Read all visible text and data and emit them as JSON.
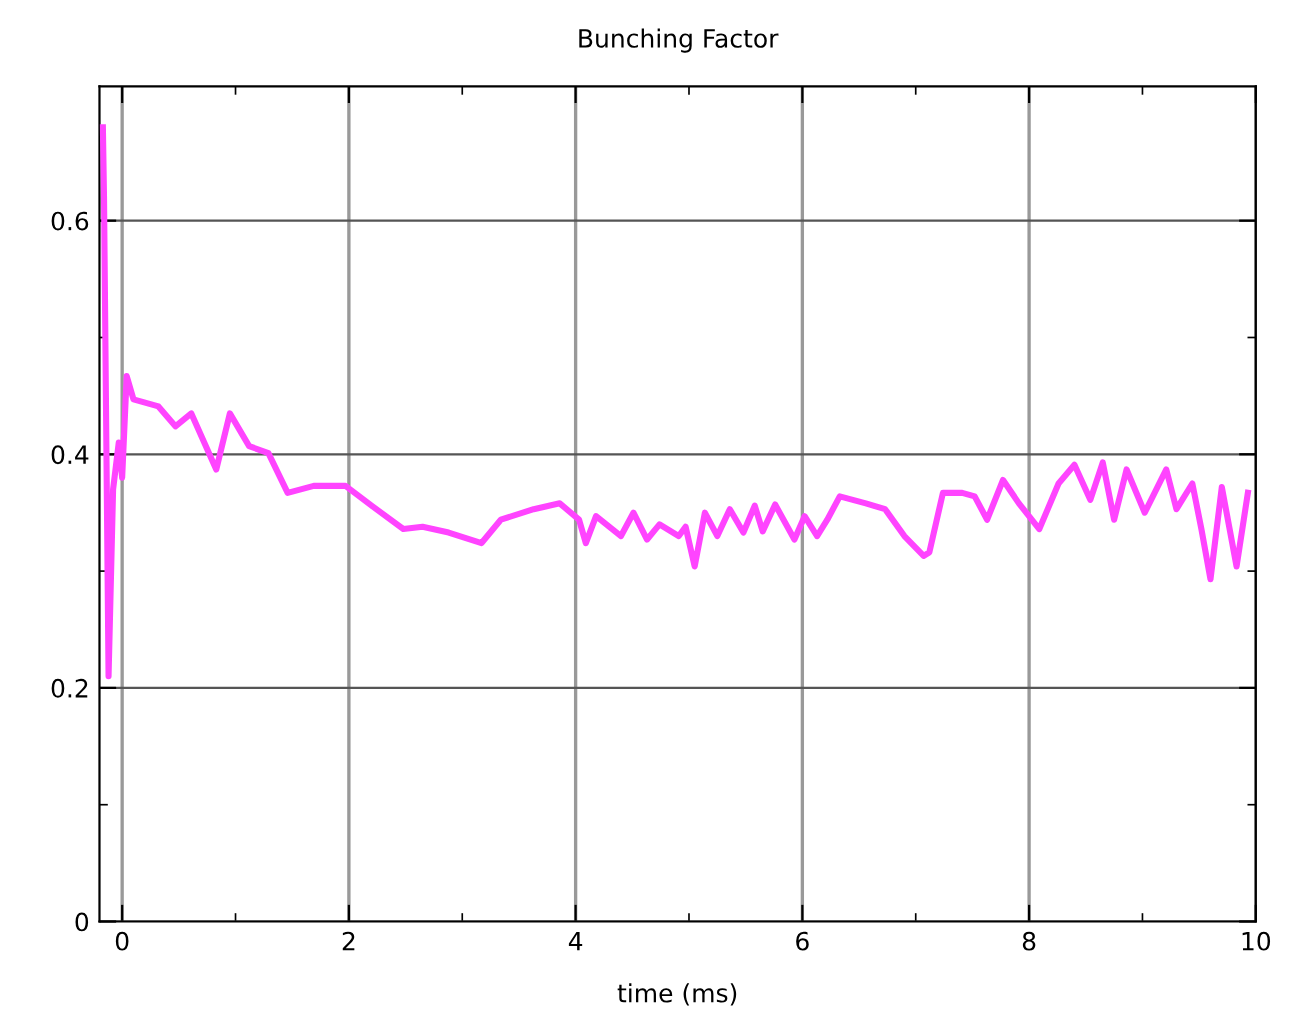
{
  "chart_data": {
    "type": "line",
    "title": "Bunching Factor",
    "xlabel": "time (ms)",
    "xlim": [
      -0.2,
      10
    ],
    "xticks": [
      0,
      2,
      4,
      6,
      8,
      10
    ],
    "ylim": [
      0,
      0.715
    ],
    "yticks": [
      0,
      0.2,
      0.4,
      0.6
    ],
    "grid": true,
    "marker": "none",
    "line_style": "solid",
    "series": [
      {
        "color": "#ff44ff",
        "x": [
          -0.17,
          -0.16,
          -0.12,
          -0.08,
          -0.03,
          0.0,
          0.04,
          0.1,
          0.32,
          0.47,
          0.61,
          0.83,
          0.95,
          1.12,
          1.29,
          1.46,
          1.69,
          1.97,
          2.2,
          2.48,
          2.65,
          2.88,
          3.17,
          3.34,
          3.63,
          3.86,
          4.03,
          4.09,
          4.18,
          4.4,
          4.51,
          4.63,
          4.74,
          4.91,
          4.97,
          5.05,
          5.14,
          5.25,
          5.36,
          5.48,
          5.58,
          5.65,
          5.76,
          5.93,
          6.02,
          6.13,
          6.22,
          6.33,
          6.56,
          6.73,
          6.9,
          7.07,
          7.12,
          7.24,
          7.41,
          7.52,
          7.63,
          7.77,
          7.91,
          8.09,
          8.26,
          8.4,
          8.54,
          8.65,
          8.75,
          8.86,
          9.02,
          9.21,
          9.3,
          9.44,
          9.52,
          9.6,
          9.7,
          9.83,
          9.93
        ],
        "values": [
          0.68,
          0.62,
          0.21,
          0.37,
          0.41,
          0.38,
          0.467,
          0.447,
          0.441,
          0.424,
          0.435,
          0.387,
          0.435,
          0.407,
          0.401,
          0.367,
          0.373,
          0.373,
          0.356,
          0.336,
          0.338,
          0.333,
          0.324,
          0.344,
          0.353,
          0.358,
          0.344,
          0.324,
          0.347,
          0.33,
          0.35,
          0.327,
          0.34,
          0.33,
          0.338,
          0.304,
          0.35,
          0.33,
          0.353,
          0.333,
          0.356,
          0.334,
          0.357,
          0.327,
          0.347,
          0.33,
          0.344,
          0.364,
          0.358,
          0.353,
          0.33,
          0.313,
          0.316,
          0.367,
          0.367,
          0.364,
          0.344,
          0.378,
          0.358,
          0.336,
          0.375,
          0.391,
          0.361,
          0.393,
          0.344,
          0.387,
          0.35,
          0.387,
          0.353,
          0.375,
          0.336,
          0.293,
          0.372,
          0.304,
          0.367
        ]
      }
    ]
  }
}
